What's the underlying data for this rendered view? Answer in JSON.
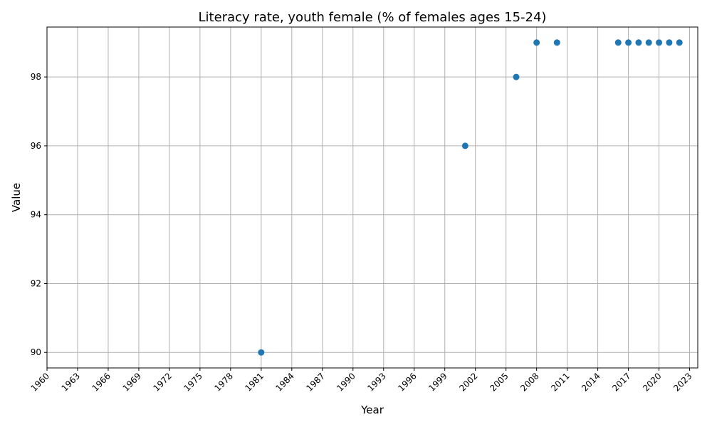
{
  "chart_data": {
    "type": "scatter",
    "title": "Literacy rate, youth female (% of females ages 15-24)",
    "xlabel": "Year",
    "ylabel": "Value",
    "xlim": [
      1960,
      2023.8
    ],
    "ylim": [
      89.55,
      99.45
    ],
    "x_ticks": [
      1960,
      1963,
      1966,
      1969,
      1972,
      1975,
      1978,
      1981,
      1984,
      1987,
      1990,
      1993,
      1996,
      1999,
      2002,
      2005,
      2008,
      2011,
      2014,
      2017,
      2020,
      2023
    ],
    "y_ticks": [
      90,
      92,
      94,
      96,
      98
    ],
    "grid": true,
    "marker_color": "#1f77b4",
    "points": [
      {
        "x": 1981,
        "y": 90
      },
      {
        "x": 2001,
        "y": 96
      },
      {
        "x": 2006,
        "y": 98
      },
      {
        "x": 2008,
        "y": 99
      },
      {
        "x": 2010,
        "y": 99
      },
      {
        "x": 2016,
        "y": 99
      },
      {
        "x": 2017,
        "y": 99
      },
      {
        "x": 2018,
        "y": 99
      },
      {
        "x": 2019,
        "y": 99
      },
      {
        "x": 2020,
        "y": 99
      },
      {
        "x": 2021,
        "y": 99
      },
      {
        "x": 2022,
        "y": 99
      }
    ]
  }
}
